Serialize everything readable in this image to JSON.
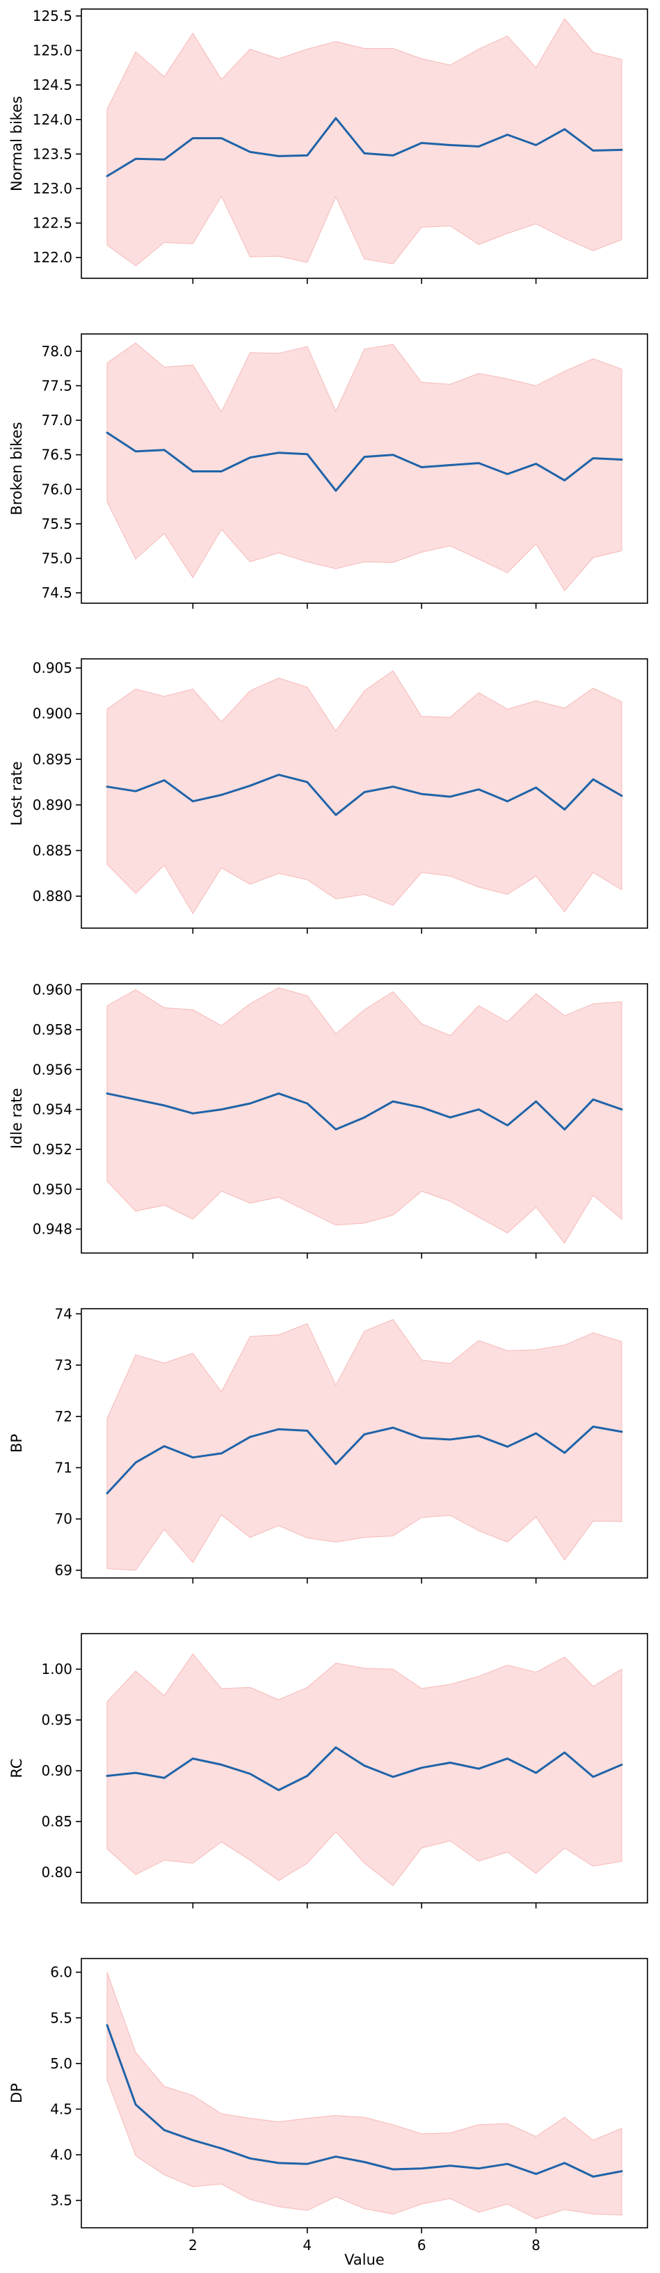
{
  "figure": {
    "xlabel": "Value",
    "x_ticks": [
      2,
      4,
      6,
      8
    ],
    "xlim": [
      0.05,
      9.95
    ],
    "line_color": "#1f63a8",
    "band_color": "#fcdede",
    "band_edge_color": "#f7b9b9"
  },
  "chart_data": [
    {
      "type": "line",
      "ylabel": "Normal bikes",
      "ylim": [
        121.7,
        125.6
      ],
      "y_ticks": [
        122.0,
        122.5,
        123.0,
        123.5,
        124.0,
        124.5,
        125.0,
        125.5
      ],
      "decimals": 1,
      "x": [
        0.5,
        1,
        1.5,
        2,
        2.5,
        3,
        3.5,
        4,
        4.5,
        5,
        5.5,
        6,
        6.5,
        7,
        7.5,
        8,
        8.5,
        9,
        9.5
      ],
      "mean": [
        123.18,
        123.43,
        123.42,
        123.73,
        123.73,
        123.53,
        123.47,
        123.48,
        124.02,
        123.51,
        123.48,
        123.66,
        123.63,
        123.61,
        123.78,
        123.63,
        123.86,
        123.55,
        123.56
      ],
      "upper": [
        124.15,
        124.98,
        124.62,
        125.25,
        124.58,
        125.02,
        124.88,
        125.02,
        125.13,
        125.03,
        125.03,
        124.88,
        124.79,
        125.02,
        125.21,
        124.75,
        125.46,
        124.97,
        124.87
      ],
      "lower": [
        122.18,
        121.88,
        122.22,
        122.2,
        122.89,
        122.01,
        122.02,
        121.93,
        122.88,
        121.98,
        121.91,
        122.44,
        122.46,
        122.19,
        122.35,
        122.49,
        122.28,
        122.1,
        122.26
      ]
    },
    {
      "type": "line",
      "ylabel": "Broken bikes",
      "ylim": [
        74.35,
        78.25
      ],
      "y_ticks": [
        74.5,
        75.0,
        75.5,
        76.0,
        76.5,
        77.0,
        77.5,
        78.0
      ],
      "decimals": 1,
      "x": [
        0.5,
        1,
        1.5,
        2,
        2.5,
        3,
        3.5,
        4,
        4.5,
        5,
        5.5,
        6,
        6.5,
        7,
        7.5,
        8,
        8.5,
        9,
        9.5
      ],
      "mean": [
        76.82,
        76.55,
        76.57,
        76.26,
        76.26,
        76.46,
        76.53,
        76.51,
        75.98,
        76.47,
        76.5,
        76.32,
        76.35,
        76.38,
        76.22,
        76.37,
        76.13,
        76.45,
        76.43
      ],
      "upper": [
        77.83,
        78.12,
        77.77,
        77.8,
        77.12,
        77.98,
        77.97,
        78.07,
        77.13,
        78.03,
        78.1,
        77.55,
        77.52,
        77.68,
        77.6,
        77.5,
        77.71,
        77.89,
        77.74
      ],
      "lower": [
        75.82,
        74.99,
        75.36,
        74.72,
        75.42,
        74.95,
        75.08,
        74.95,
        74.85,
        74.95,
        74.94,
        75.09,
        75.18,
        74.99,
        74.79,
        75.21,
        74.53,
        75.01,
        75.11
      ]
    },
    {
      "type": "line",
      "ylabel": "Lost rate",
      "ylim": [
        0.8765,
        0.906
      ],
      "y_ticks": [
        0.88,
        0.885,
        0.89,
        0.895,
        0.9,
        0.905
      ],
      "decimals": 3,
      "x": [
        0.5,
        1,
        1.5,
        2,
        2.5,
        3,
        3.5,
        4,
        4.5,
        5,
        5.5,
        6,
        6.5,
        7,
        7.5,
        8,
        8.5,
        9,
        9.5
      ],
      "mean": [
        0.892,
        0.8915,
        0.8927,
        0.8904,
        0.8911,
        0.8921,
        0.8933,
        0.8925,
        0.8889,
        0.8914,
        0.892,
        0.8912,
        0.8909,
        0.8917,
        0.8904,
        0.8919,
        0.8895,
        0.8928,
        0.891
      ],
      "upper": [
        0.9005,
        0.9027,
        0.9019,
        0.9027,
        0.8991,
        0.9025,
        0.9039,
        0.9029,
        0.8981,
        0.9025,
        0.9047,
        0.8997,
        0.8996,
        0.9023,
        0.9005,
        0.9014,
        0.9006,
        0.9028,
        0.9013
      ],
      "lower": [
        0.8835,
        0.8803,
        0.8834,
        0.8781,
        0.8831,
        0.8813,
        0.8825,
        0.8818,
        0.8797,
        0.8802,
        0.879,
        0.8826,
        0.8822,
        0.881,
        0.8802,
        0.8822,
        0.8783,
        0.8826,
        0.8807
      ]
    },
    {
      "type": "line",
      "ylabel": "Idle rate",
      "ylim": [
        0.9468,
        0.9603
      ],
      "y_ticks": [
        0.948,
        0.95,
        0.952,
        0.954,
        0.956,
        0.958,
        0.96
      ],
      "decimals": 3,
      "x": [
        0.5,
        1,
        1.5,
        2,
        2.5,
        3,
        3.5,
        4,
        4.5,
        5,
        5.5,
        6,
        6.5,
        7,
        7.5,
        8,
        8.5,
        9,
        9.5
      ],
      "mean": [
        0.9548,
        0.9545,
        0.9542,
        0.9538,
        0.954,
        0.9543,
        0.9548,
        0.9543,
        0.953,
        0.9536,
        0.9544,
        0.9541,
        0.9536,
        0.954,
        0.9532,
        0.9544,
        0.953,
        0.9545,
        0.954
      ],
      "upper": [
        0.9592,
        0.96,
        0.9591,
        0.959,
        0.9582,
        0.9593,
        0.9601,
        0.9597,
        0.9578,
        0.959,
        0.9599,
        0.9583,
        0.9577,
        0.9592,
        0.9584,
        0.9598,
        0.9587,
        0.9593,
        0.9594
      ],
      "lower": [
        0.9504,
        0.9489,
        0.9492,
        0.9485,
        0.9499,
        0.9493,
        0.9496,
        0.9489,
        0.9482,
        0.9483,
        0.9487,
        0.9499,
        0.9494,
        0.9486,
        0.9478,
        0.9491,
        0.9473,
        0.9497,
        0.9485
      ]
    },
    {
      "type": "line",
      "ylabel": "BP",
      "ylim": [
        68.85,
        74.1
      ],
      "y_ticks": [
        69,
        70,
        71,
        72,
        73,
        74
      ],
      "decimals": 0,
      "x": [
        0.5,
        1,
        1.5,
        2,
        2.5,
        3,
        3.5,
        4,
        4.5,
        5,
        5.5,
        6,
        6.5,
        7,
        7.5,
        8,
        8.5,
        9,
        9.5
      ],
      "mean": [
        70.5,
        71.1,
        71.42,
        71.2,
        71.28,
        71.6,
        71.75,
        71.72,
        71.07,
        71.65,
        71.78,
        71.58,
        71.55,
        71.62,
        71.41,
        71.67,
        71.29,
        71.8,
        71.7
      ],
      "upper": [
        71.96,
        73.2,
        73.04,
        73.23,
        72.48,
        73.56,
        73.59,
        73.81,
        72.61,
        73.66,
        73.89,
        73.1,
        73.03,
        73.48,
        73.28,
        73.3,
        73.39,
        73.63,
        73.46
      ],
      "lower": [
        69.03,
        69.0,
        69.8,
        69.15,
        70.08,
        69.64,
        69.87,
        69.63,
        69.55,
        69.64,
        69.67,
        70.03,
        70.07,
        69.77,
        69.55,
        70.04,
        69.2,
        69.96,
        69.95
      ]
    },
    {
      "type": "line",
      "ylabel": "RC",
      "ylim": [
        0.77,
        1.035
      ],
      "y_ticks": [
        0.8,
        0.85,
        0.9,
        0.95,
        1.0
      ],
      "decimals": 2,
      "x": [
        0.5,
        1,
        1.5,
        2,
        2.5,
        3,
        3.5,
        4,
        4.5,
        5,
        5.5,
        6,
        6.5,
        7,
        7.5,
        8,
        8.5,
        9,
        9.5
      ],
      "mean": [
        0.895,
        0.898,
        0.893,
        0.912,
        0.906,
        0.897,
        0.881,
        0.895,
        0.923,
        0.905,
        0.894,
        0.903,
        0.908,
        0.902,
        0.912,
        0.898,
        0.918,
        0.894,
        0.906
      ],
      "upper": [
        0.968,
        0.998,
        0.974,
        1.015,
        0.981,
        0.982,
        0.97,
        0.982,
        1.006,
        1.001,
        1.0,
        0.981,
        0.985,
        0.993,
        1.004,
        0.997,
        1.012,
        0.983,
        1.0
      ],
      "lower": [
        0.823,
        0.798,
        0.812,
        0.809,
        0.83,
        0.812,
        0.792,
        0.809,
        0.84,
        0.809,
        0.787,
        0.824,
        0.831,
        0.811,
        0.82,
        0.799,
        0.824,
        0.806,
        0.811
      ]
    },
    {
      "type": "line",
      "ylabel": "DP",
      "ylim": [
        3.2,
        6.15
      ],
      "y_ticks": [
        3.5,
        4.0,
        4.5,
        5.0,
        5.5,
        6.0
      ],
      "decimals": 1,
      "x": [
        0.5,
        1,
        1.5,
        2,
        2.5,
        3,
        3.5,
        4,
        4.5,
        5,
        5.5,
        6,
        6.5,
        7,
        7.5,
        8,
        8.5,
        9,
        9.5
      ],
      "mean": [
        5.42,
        4.55,
        4.27,
        4.16,
        4.07,
        3.96,
        3.91,
        3.9,
        3.98,
        3.92,
        3.84,
        3.85,
        3.88,
        3.85,
        3.9,
        3.79,
        3.91,
        3.76,
        3.82
      ],
      "upper": [
        6.0,
        5.12,
        4.75,
        4.65,
        4.45,
        4.4,
        4.36,
        4.4,
        4.43,
        4.41,
        4.33,
        4.23,
        4.24,
        4.33,
        4.34,
        4.2,
        4.41,
        4.16,
        4.29
      ],
      "lower": [
        4.82,
        3.99,
        3.78,
        3.65,
        3.68,
        3.51,
        3.43,
        3.39,
        3.54,
        3.41,
        3.35,
        3.46,
        3.52,
        3.37,
        3.46,
        3.3,
        3.4,
        3.35,
        3.34
      ]
    }
  ]
}
